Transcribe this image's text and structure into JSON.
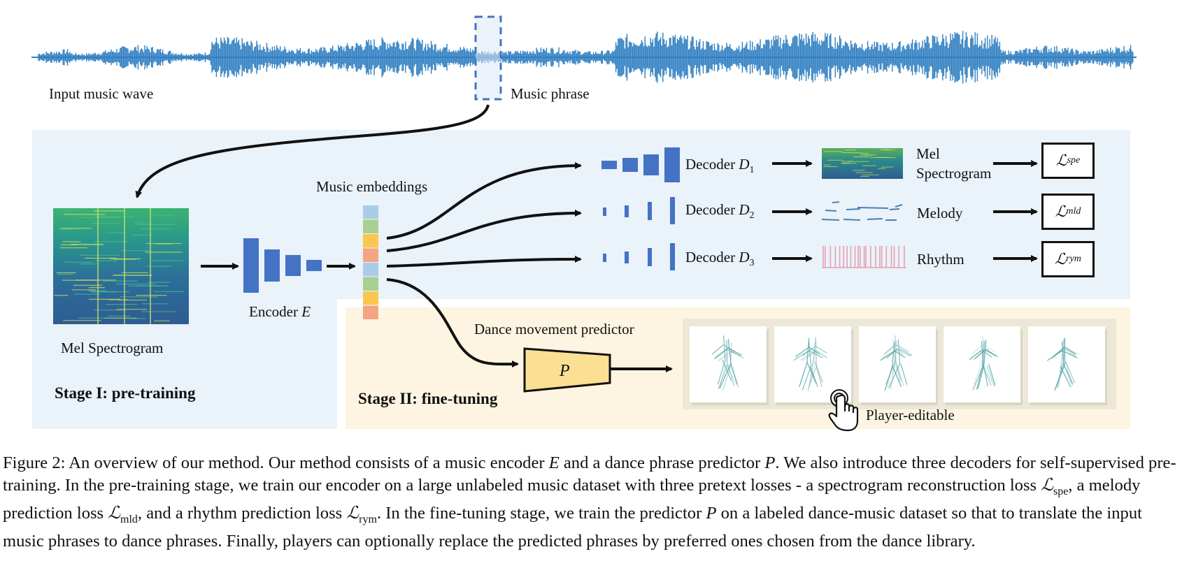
{
  "figure": {
    "labels": {
      "input_music_wave": "Input music wave",
      "music_phrase": "Music phrase",
      "mel_spectrogram": "Mel  Spectrogram",
      "encoder_text": "Encoder",
      "encoder_symbol": "E",
      "music_embeddings": "Music embeddings",
      "stage1": "Stage I: pre-training",
      "stage2": "Stage II: fine-tuning",
      "dance_predictor": "Dance movement predictor",
      "predictor_symbol": "P",
      "player_editable": "Player-editable"
    },
    "decoders": [
      {
        "text": "Decoder",
        "symbol": "D",
        "index": "1",
        "output_line1": "Mel",
        "output_line2": "Spectrogram",
        "loss_symbol": "ℒ",
        "loss_sub": "spe"
      },
      {
        "text": "Decoder",
        "symbol": "D",
        "index": "2",
        "output_line1": "Melody",
        "output_line2": "",
        "loss_symbol": "ℒ",
        "loss_sub": "mld"
      },
      {
        "text": "Decoder",
        "symbol": "D",
        "index": "3",
        "output_line1": "Rhythm",
        "output_line2": "",
        "loss_symbol": "ℒ",
        "loss_sub": "rym"
      }
    ],
    "embedding_colors": [
      "#a9cde9",
      "#a8d08e",
      "#f9c74f",
      "#f4a582",
      "#a9cde9",
      "#a8d08e",
      "#f9c74f",
      "#f4a582"
    ],
    "colors": {
      "wave_blue": "#2f7fc1",
      "encoder_blue": "#4472c4",
      "stage1_bg": "#eaf2fa",
      "stage2_bg": "#fdf5e1",
      "predictor_fill": "#fbdf93",
      "rhythm_red": "#e8a0b0",
      "skeleton": "#5aa7a7"
    },
    "icons": [
      "hand-pointer-icon"
    ]
  },
  "caption": {
    "p1": "Figure 2: An overview of our method. Our method consists of a music encoder ",
    "E": "E",
    "p2": " and a dance phrase predictor ",
    "P": "P",
    "p3": ". We also introduce three decoders for self-supervised pre-training. In the pre-training stage, we train our encoder on a large unlabeled music dataset with three pretext losses - a spectrogram reconstruction loss ",
    "L1": "ℒ",
    "L1sub": "spe",
    "p4": ", a melody prediction loss ",
    "L2": "ℒ",
    "L2sub": "mld",
    "p5": ", and a rhythm prediction loss ",
    "L3": "ℒ",
    "L3sub": "rym",
    "p6": ". In the fine-tuning stage, we train the predictor ",
    "P2": "P",
    "p7": " on a labeled dance-music dataset so that to translate the input music phrases to dance phrases. Finally, players can optionally replace the predicted phrases by preferred ones chosen from the dance library."
  }
}
